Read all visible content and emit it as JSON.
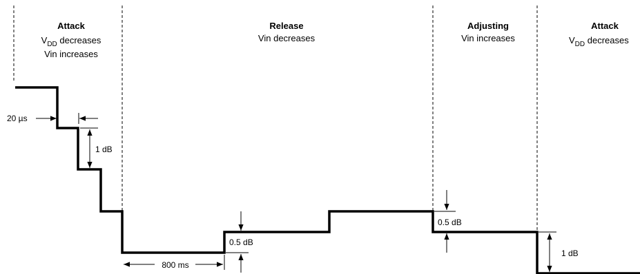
{
  "phases": [
    {
      "title": "Attack",
      "line1_main": "V",
      "line1_sub": "DD",
      "line1_rest": " decreases",
      "line2": "Vin increases"
    },
    {
      "title": "Release",
      "line1": "Vin decreases"
    },
    {
      "title": "Adjusting",
      "line1": "Vin increases"
    },
    {
      "title": "Attack",
      "line1_main": "V",
      "line1_sub": "DD",
      "line1_rest": " decreases"
    }
  ],
  "annotations": {
    "step_time": "20 µs",
    "attack_step": "1 dB",
    "hold_time": "800 ms",
    "release_step": "0.5 dB",
    "adjust_step": "0.5 dB",
    "final_step": "1 dB"
  }
}
